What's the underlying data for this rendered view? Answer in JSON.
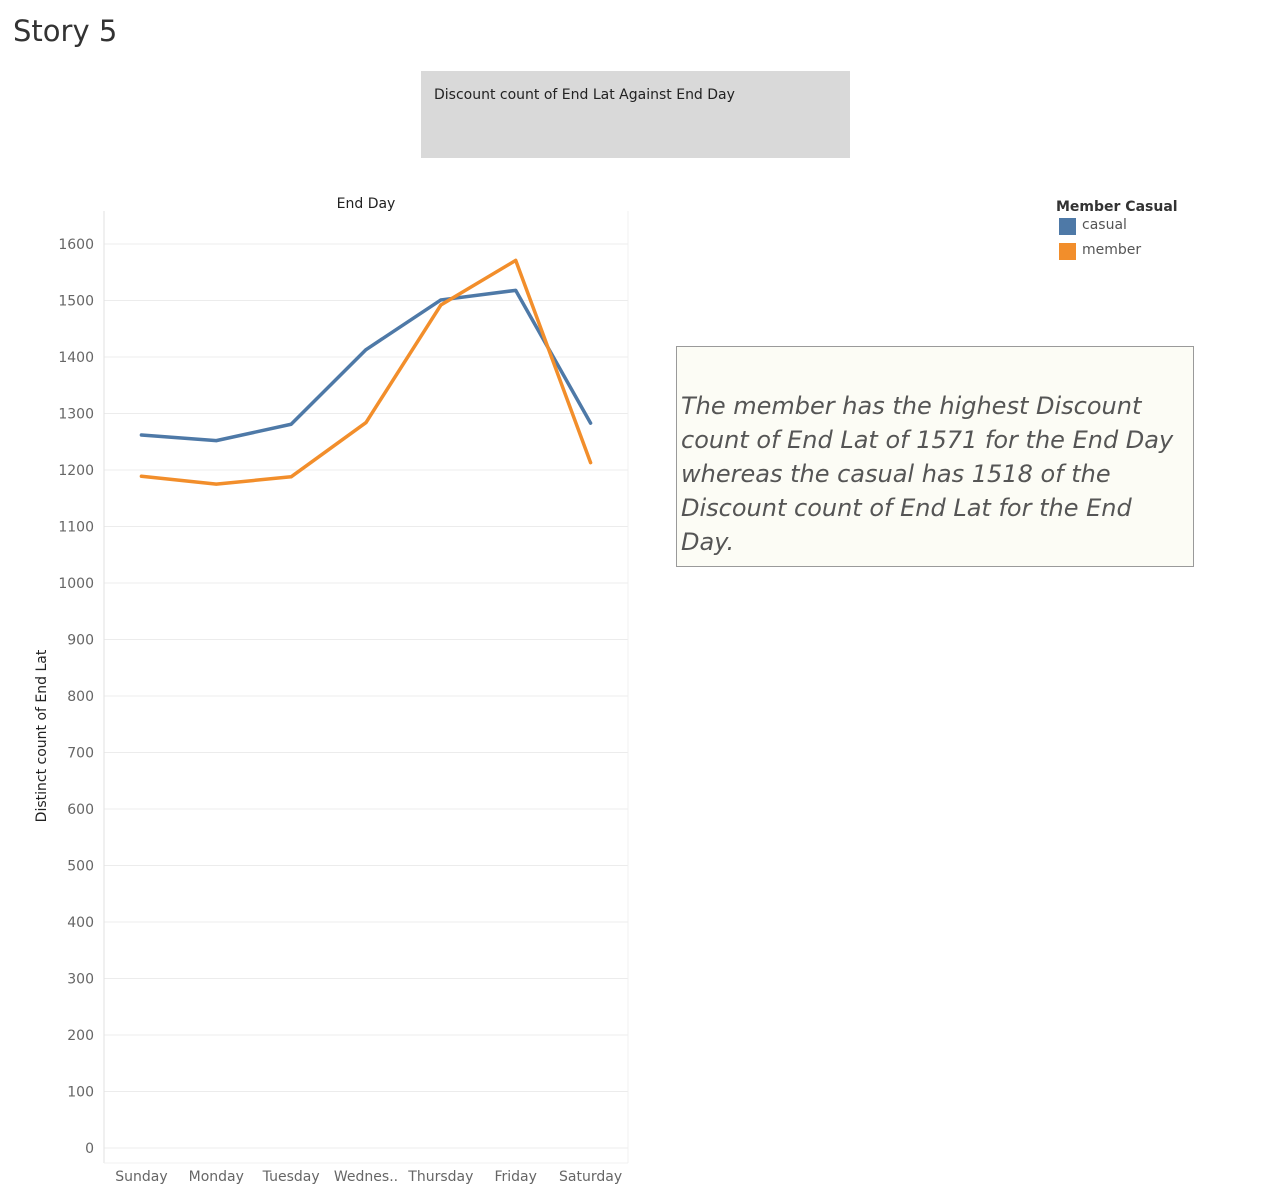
{
  "story": {
    "title": "Story 5"
  },
  "caption": {
    "text": "Discount count of End Lat Against End Day"
  },
  "annotation": {
    "text": "The member has the highest Discount count of End Lat of 1571 for the End Day whereas the casual has 1518 of the   Discount count of End Lat for the End Day."
  },
  "legend": {
    "title": "Member Casual",
    "items": [
      {
        "label": "casual",
        "color": "#4e79a7"
      },
      {
        "label": "member",
        "color": "#f28e2b"
      }
    ]
  },
  "chart_data": {
    "type": "line",
    "title": "End Day",
    "xlabel": "End Day",
    "ylabel": "Distinct count of End Lat",
    "categories": [
      "Sunday",
      "Monday",
      "Tuesday",
      "Wednes..",
      "Thursday",
      "Friday",
      "Saturday"
    ],
    "series": [
      {
        "name": "casual",
        "color": "#4e79a7",
        "values": [
          1262,
          1252,
          1281,
          1413,
          1501,
          1518,
          1283
        ]
      },
      {
        "name": "member",
        "color": "#f28e2b",
        "values": [
          1189,
          1175,
          1188,
          1284,
          1492,
          1571,
          1213
        ]
      }
    ],
    "ylim": [
      0,
      1600
    ],
    "yticks": [
      0,
      100,
      200,
      300,
      400,
      500,
      600,
      700,
      800,
      900,
      1000,
      1100,
      1200,
      1300,
      1400,
      1500,
      1600
    ],
    "grid": true,
    "legend": "top-right"
  }
}
